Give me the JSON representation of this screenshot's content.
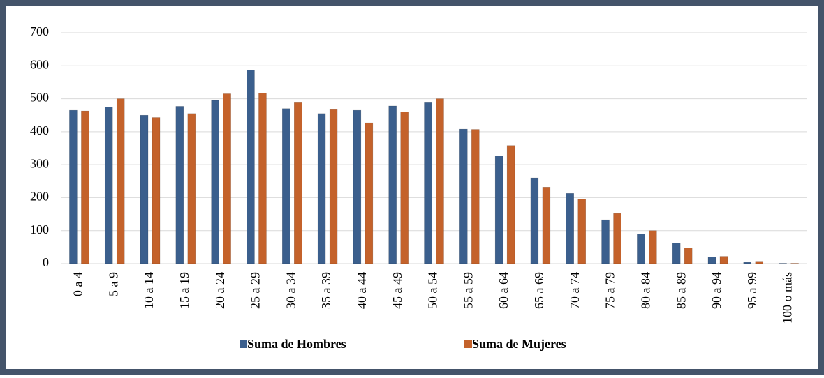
{
  "chart_data": {
    "type": "bar",
    "categories": [
      "0 a 4",
      "5 a 9",
      "10 a 14",
      "15 a 19",
      "20 a 24",
      "25 a 29",
      "30 a 34",
      "35 a 39",
      "40 a 44",
      "45 a 49",
      "50 a 54",
      "55 a 59",
      "60 a 64",
      "65 a 69",
      "70 a 74",
      "75 a 79",
      "80 a 84",
      "85 a 89",
      "90 a 94",
      "95 a 99",
      "100 o más"
    ],
    "series": [
      {
        "name": "Suma de Hombres",
        "color": "#3b5f8d",
        "values": [
          465,
          475,
          450,
          477,
          495,
          587,
          470,
          455,
          465,
          478,
          490,
          408,
          327,
          260,
          213,
          133,
          90,
          62,
          20,
          4,
          1
        ]
      },
      {
        "name": "Suma de Mujeres",
        "color": "#c4622b",
        "values": [
          463,
          500,
          443,
          455,
          515,
          517,
          490,
          467,
          427,
          460,
          500,
          407,
          358,
          232,
          195,
          152,
          100,
          48,
          22,
          7,
          1
        ]
      }
    ],
    "ylim": [
      0,
      700
    ],
    "yticks": [
      0,
      100,
      200,
      300,
      400,
      500,
      600,
      700
    ],
    "grid": true,
    "legend": "bottom"
  }
}
